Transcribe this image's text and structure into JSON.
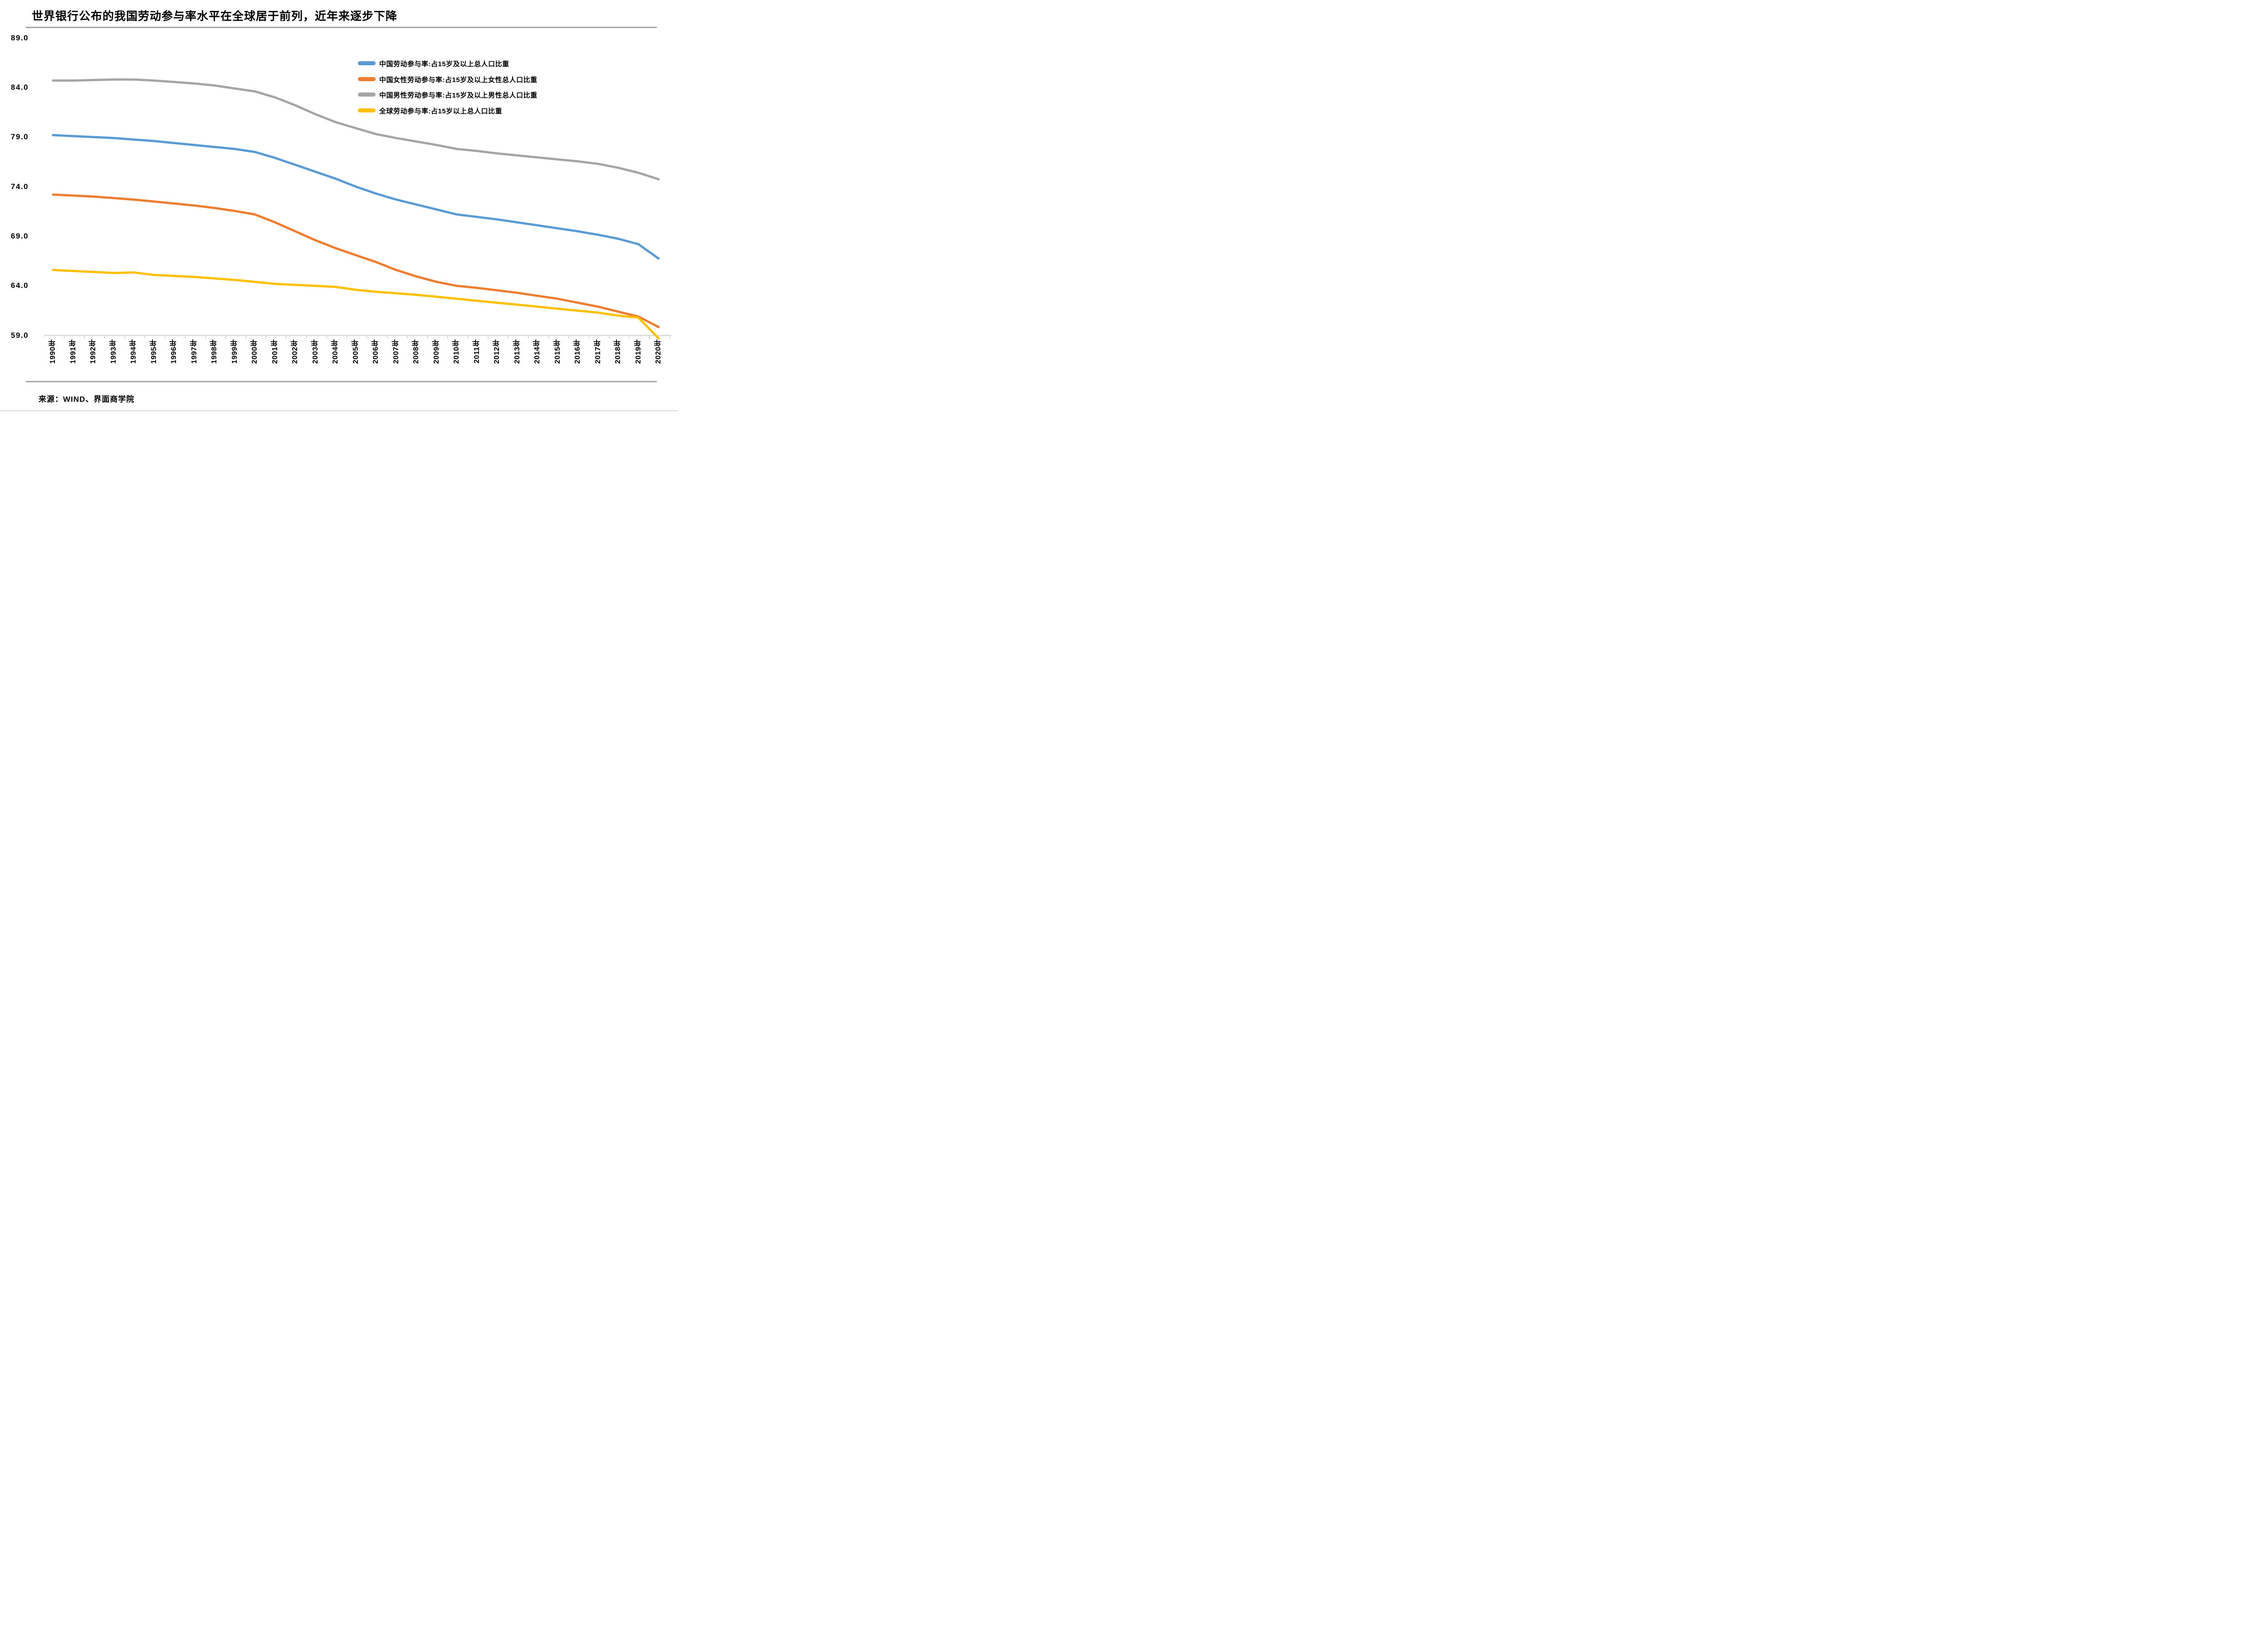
{
  "title": "世界银行公布的我国劳动参与率水平在全球居于前列，近年来逐步下降",
  "source": "来源：WIND、界面商学院",
  "chart_data": {
    "type": "line",
    "categories": [
      "1990年",
      "1991年",
      "1992年",
      "1993年",
      "1994年",
      "1995年",
      "1996年",
      "1997年",
      "1998年",
      "1999年",
      "2000年",
      "2001年",
      "2002年",
      "2003年",
      "2004年",
      "2005年",
      "2006年",
      "2007年",
      "2008年",
      "2009年",
      "2010年",
      "2011年",
      "2012年",
      "2013年",
      "2014年",
      "2015年",
      "2016年",
      "2017年",
      "2018年",
      "2019年",
      "2020年"
    ],
    "years": [
      1990,
      1991,
      1992,
      1993,
      1994,
      1995,
      1996,
      1997,
      1998,
      1999,
      2000,
      2001,
      2002,
      2003,
      2004,
      2005,
      2006,
      2007,
      2008,
      2009,
      2010,
      2011,
      2012,
      2013,
      2014,
      2015,
      2016,
      2017,
      2018,
      2019,
      2020
    ],
    "series": [
      {
        "name": "中国劳动参与率:占15岁及以上总人口比重",
        "color": "#5B9BD5",
        "values": [
          79.2,
          79.1,
          79.0,
          78.9,
          78.75,
          78.6,
          78.4,
          78.2,
          78.0,
          77.8,
          77.5,
          76.9,
          76.2,
          75.5,
          74.8,
          74.0,
          73.3,
          72.7,
          72.2,
          71.7,
          71.2,
          70.95,
          70.7,
          70.4,
          70.1,
          69.8,
          69.5,
          69.15,
          68.75,
          68.2,
          66.75
        ]
      },
      {
        "name": "中国女性劳动参与率:占15岁及以上女性总人口比重",
        "color": "#ED7D31",
        "values": [
          73.2,
          73.1,
          73.0,
          72.85,
          72.7,
          72.5,
          72.3,
          72.1,
          71.85,
          71.55,
          71.2,
          70.4,
          69.5,
          68.6,
          67.8,
          67.1,
          66.4,
          65.6,
          64.95,
          64.4,
          64.0,
          63.8,
          63.55,
          63.3,
          63.0,
          62.7,
          62.3,
          61.9,
          61.4,
          60.9,
          59.85
        ]
      },
      {
        "name": "中国男性劳动参与率:占15岁及以上男性总人口比重",
        "color": "#A5A5A5",
        "values": [
          84.7,
          84.7,
          84.75,
          84.8,
          84.8,
          84.7,
          84.55,
          84.4,
          84.2,
          83.9,
          83.6,
          83.0,
          82.2,
          81.3,
          80.5,
          79.9,
          79.3,
          78.9,
          78.55,
          78.2,
          77.8,
          77.6,
          77.35,
          77.15,
          76.95,
          76.75,
          76.55,
          76.3,
          75.9,
          75.4,
          74.75
        ]
      },
      {
        "name": "全球劳动参与率:占15岁以上总人口比重",
        "color": "#FFC000",
        "values": [
          65.6,
          65.5,
          65.4,
          65.3,
          65.35,
          65.1,
          65.0,
          64.9,
          64.75,
          64.6,
          64.4,
          64.2,
          64.1,
          64.0,
          63.9,
          63.6,
          63.4,
          63.25,
          63.1,
          62.9,
          62.7,
          62.5,
          62.3,
          62.1,
          61.9,
          61.7,
          61.5,
          61.3,
          61.0,
          60.8,
          58.7
        ]
      }
    ],
    "ylim": [
      59.0,
      89.0
    ],
    "ytick_step": 5.0,
    "yticks": [
      "89.0",
      "84.0",
      "79.0",
      "74.0",
      "69.0",
      "64.0",
      "59.0"
    ],
    "xlabel": "",
    "ylabel": "",
    "grid": "off",
    "legend_position": "inside-top-right",
    "axis_color": "#D9D9D9"
  }
}
